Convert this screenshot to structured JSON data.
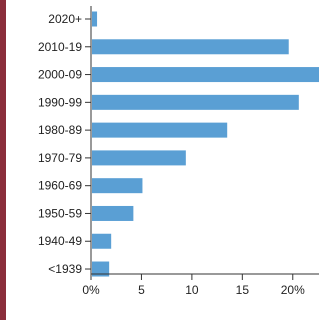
{
  "chart_data": {
    "type": "bar",
    "orientation": "horizontal",
    "categories": [
      "2020+",
      "2010-19",
      "2000-09",
      "1990-99",
      "1980-89",
      "1970-79",
      "1960-69",
      "1950-59",
      "1940-49",
      "<1939"
    ],
    "values": [
      0.6,
      19.6,
      22.6,
      20.6,
      13.5,
      9.4,
      5.1,
      4.2,
      2.0,
      1.8
    ],
    "x_ticks": [
      0,
      5,
      10,
      15,
      20
    ],
    "x_tick_labels": [
      "0%",
      "5",
      "10",
      "15",
      "20%"
    ],
    "xlim": [
      0,
      22.6
    ],
    "bar_color": "#5a9fd4",
    "grid": false,
    "legend": "none",
    "title": "",
    "xlabel": "",
    "ylabel": ""
  }
}
